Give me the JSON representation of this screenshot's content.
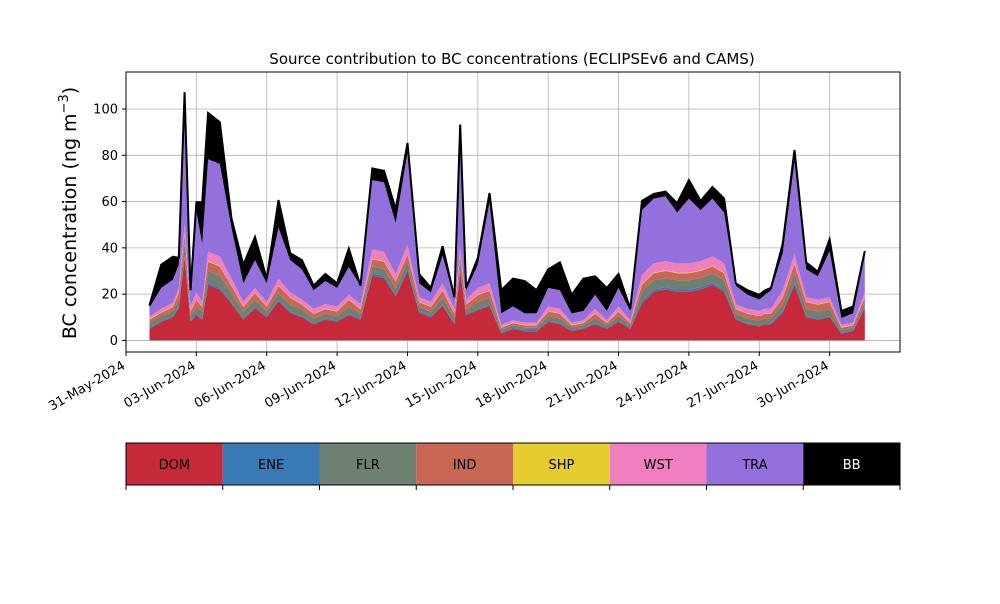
{
  "chart_data": {
    "type": "area",
    "stacked": true,
    "title": "Source contribution to BC concentrations (ECLIPSEv6 and CAMS)",
    "ylabel_main": "BC concentration (ng m",
    "ylabel_unit_exp": "−3",
    "ylabel_close": ")",
    "xlabel": "",
    "grid": true,
    "x_range": [
      "2024-05-31",
      "2024-07-03"
    ],
    "ylim": [
      -5,
      116
    ],
    "y_ticks": [
      0,
      20,
      40,
      60,
      80,
      100
    ],
    "x_tick_labels": [
      "31-May-2024",
      "03-Jun-2024",
      "06-Jun-2024",
      "09-Jun-2024",
      "12-Jun-2024",
      "15-Jun-2024",
      "18-Jun-2024",
      "21-Jun-2024",
      "24-Jun-2024",
      "27-Jun-2024",
      "30-Jun-2024"
    ],
    "x_ticks": [
      "2024-05-31",
      "2024-06-03",
      "2024-06-06",
      "2024-06-09",
      "2024-06-12",
      "2024-06-15",
      "2024-06-18",
      "2024-06-21",
      "2024-06-24",
      "2024-06-27",
      "2024-06-30"
    ],
    "x": [
      "2024-06-01",
      "2024-06-01 12:00",
      "2024-06-02",
      "2024-06-02 06:00",
      "2024-06-02 12:00",
      "2024-06-02 18:00",
      "2024-06-03",
      "2024-06-03 06:00",
      "2024-06-03 12:00",
      "2024-06-04",
      "2024-06-04 12:00",
      "2024-06-05",
      "2024-06-05 12:00",
      "2024-06-06",
      "2024-06-06 12:00",
      "2024-06-07",
      "2024-06-07 12:00",
      "2024-06-08",
      "2024-06-08 12:00",
      "2024-06-09",
      "2024-06-09 12:00",
      "2024-06-10",
      "2024-06-10 12:00",
      "2024-06-11",
      "2024-06-11 12:00",
      "2024-06-12",
      "2024-06-12 12:00",
      "2024-06-13",
      "2024-06-13 12:00",
      "2024-06-14",
      "2024-06-14 06:00",
      "2024-06-14 12:00",
      "2024-06-15",
      "2024-06-15 12:00",
      "2024-06-16",
      "2024-06-16 12:00",
      "2024-06-17",
      "2024-06-17 12:00",
      "2024-06-18",
      "2024-06-18 12:00",
      "2024-06-19",
      "2024-06-19 12:00",
      "2024-06-20",
      "2024-06-20 12:00",
      "2024-06-21",
      "2024-06-21 12:00",
      "2024-06-22",
      "2024-06-22 12:00",
      "2024-06-23",
      "2024-06-23 12:00",
      "2024-06-24",
      "2024-06-24 12:00",
      "2024-06-25",
      "2024-06-25 12:00",
      "2024-06-26",
      "2024-06-26 12:00",
      "2024-06-27",
      "2024-06-27 06:00",
      "2024-06-27 12:00",
      "2024-06-28",
      "2024-06-28 12:00",
      "2024-06-29",
      "2024-06-29 12:00",
      "2024-06-30",
      "2024-06-30 12:00",
      "2024-07-01",
      "2024-07-01 12:00"
    ],
    "series": [
      {
        "name": "DOM",
        "color": "#c62a3a",
        "values": [
          5,
          8,
          10,
          14,
          36,
          8,
          11,
          9,
          24,
          22,
          16,
          9,
          14,
          10,
          17,
          12,
          10,
          7,
          9,
          8,
          11,
          9,
          28,
          27,
          19,
          30,
          12,
          10,
          15,
          7,
          30,
          11,
          13,
          15,
          3,
          5,
          4,
          4,
          8,
          7,
          4,
          5,
          7,
          5,
          8,
          5,
          16,
          21,
          22,
          21,
          21,
          22,
          24,
          21,
          9,
          7,
          6,
          7,
          7,
          12,
          24,
          10,
          9,
          10,
          3,
          4,
          14
        ]
      },
      {
        "name": "ENE",
        "color": "#3a7ab4",
        "values": [
          0.5,
          0.5,
          0.5,
          0.5,
          1,
          0.5,
          0.5,
          0.5,
          1,
          1,
          0.5,
          0.5,
          0.5,
          0.5,
          0.5,
          0.5,
          0.5,
          0.5,
          0.5,
          0.5,
          0.5,
          0.5,
          1,
          1,
          0.5,
          1,
          0.5,
          0.5,
          0.5,
          0.5,
          1,
          0.5,
          0.5,
          0.5,
          0.5,
          0.5,
          0.5,
          0.5,
          0.5,
          0.5,
          0.5,
          0.5,
          0.5,
          0.5,
          0.5,
          0.5,
          1,
          1,
          1,
          1,
          1,
          1,
          1,
          1,
          0.5,
          0.5,
          0.5,
          0.5,
          0.5,
          0.5,
          1,
          0.5,
          0.5,
          0.5,
          0.5,
          0.5,
          0.5
        ]
      },
      {
        "name": "FLR",
        "color": "#6e8070",
        "values": [
          2,
          2,
          2,
          3,
          5,
          2,
          3,
          3,
          5,
          5,
          4,
          3,
          3,
          2,
          3,
          3,
          3,
          2,
          2,
          2,
          3,
          2,
          3,
          3,
          3,
          3,
          2,
          2,
          3,
          2,
          3,
          2,
          3,
          3,
          1,
          1,
          1,
          1,
          2,
          2,
          1,
          1,
          2,
          1,
          2,
          1,
          4,
          4,
          4,
          4,
          4,
          4,
          4,
          4,
          2,
          2,
          2,
          2,
          2,
          3,
          4,
          3,
          3,
          3,
          1,
          1,
          2
        ]
      },
      {
        "name": "IND",
        "color": "#c86755",
        "values": [
          1.5,
          1.5,
          2,
          3,
          4,
          2,
          3,
          2,
          4,
          4,
          3,
          2,
          3,
          2,
          3,
          3,
          2,
          2,
          2,
          2,
          3,
          2,
          3,
          3,
          3,
          3,
          2,
          2,
          3,
          2,
          3,
          2,
          3,
          3,
          1,
          1,
          1,
          1,
          2,
          2,
          1,
          1,
          2,
          1,
          2,
          1,
          3,
          3,
          3,
          3,
          3,
          3,
          3,
          3,
          2,
          2,
          2,
          2,
          2,
          3,
          4,
          3,
          3,
          3,
          1,
          1,
          2
        ]
      },
      {
        "name": "SHP",
        "color": "#e5cd2f",
        "values": [
          0.2,
          0.2,
          0.2,
          0.2,
          0.3,
          0.2,
          0.2,
          0.2,
          0.3,
          0.3,
          0.2,
          0.2,
          0.2,
          0.2,
          0.2,
          0.2,
          0.2,
          0.2,
          0.2,
          0.2,
          0.2,
          0.2,
          0.3,
          0.3,
          0.2,
          0.3,
          0.2,
          0.2,
          0.2,
          0.2,
          0.3,
          0.2,
          0.2,
          0.2,
          0.2,
          0.2,
          0.2,
          0.2,
          0.2,
          0.2,
          0.2,
          0.2,
          0.2,
          0.2,
          0.2,
          0.2,
          0.3,
          0.3,
          0.3,
          0.3,
          0.3,
          0.3,
          0.3,
          0.3,
          0.2,
          0.2,
          0.2,
          0.2,
          0.2,
          0.2,
          0.3,
          0.2,
          0.2,
          0.2,
          0.2,
          0.2,
          0.2
        ]
      },
      {
        "name": "WST",
        "color": "#f07fbf",
        "values": [
          1,
          1.5,
          1.5,
          2,
          4,
          2,
          3,
          2,
          4,
          4,
          3,
          2,
          2,
          2,
          3,
          2,
          2,
          2,
          2,
          2,
          2,
          2,
          4,
          4,
          3,
          4,
          2,
          2,
          3,
          2,
          3,
          2,
          3,
          3,
          1,
          1,
          1,
          1,
          2,
          2,
          1,
          1,
          2,
          1,
          2,
          1,
          4,
          4,
          4,
          4,
          4,
          4,
          4,
          4,
          2,
          2,
          2,
          2,
          2,
          3,
          4,
          2,
          2,
          2,
          1,
          1,
          2
        ]
      },
      {
        "name": "TRA",
        "color": "#9370db",
        "values": [
          4,
          9,
          10,
          10,
          45,
          6,
          35,
          25,
          40,
          40,
          22,
          8,
          12,
          8,
          22,
          14,
          13,
          8,
          10,
          8,
          12,
          8,
          30,
          30,
          22,
          40,
          6,
          4,
          12,
          4,
          45,
          4,
          10,
          35,
          5,
          6,
          4,
          4,
          8,
          8,
          4,
          4,
          6,
          4,
          8,
          4,
          28,
          28,
          28,
          22,
          28,
          22,
          25,
          22,
          8,
          6,
          5,
          6,
          8,
          16,
          40,
          12,
          10,
          20,
          3,
          4,
          16
        ]
      },
      {
        "name": "BB",
        "color": "#000000",
        "values": [
          1,
          10,
          10,
          3,
          12,
          1,
          4,
          18,
          20,
          18,
          4,
          8,
          10,
          2,
          12,
          3,
          4,
          2,
          3,
          2,
          8,
          0,
          5,
          5,
          6,
          4,
          4,
          2,
          4,
          1,
          8,
          1,
          3,
          4,
          10,
          12,
          14,
          10,
          8,
          12,
          8,
          14,
          8,
          10,
          6,
          1,
          4,
          2,
          2,
          4,
          8,
          4,
          5,
          6,
          1,
          2,
          2,
          2,
          1,
          4,
          5,
          3,
          2,
          5,
          3,
          3,
          2
        ]
      }
    ]
  }
}
